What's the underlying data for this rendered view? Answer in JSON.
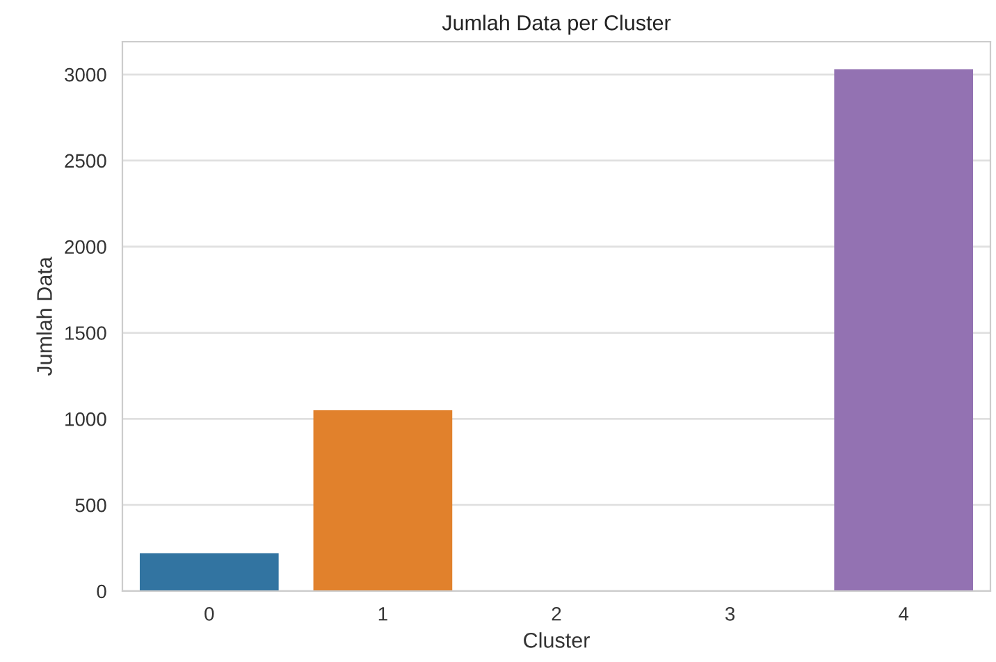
{
  "chart_data": {
    "type": "bar",
    "title": "Jumlah Data per Cluster",
    "xlabel": "Cluster",
    "ylabel": "Jumlah Data",
    "categories": [
      "0",
      "1",
      "2",
      "3",
      "4"
    ],
    "values": [
      220,
      1050,
      0,
      0,
      3030
    ],
    "colors": [
      "#3274a1",
      "#e1812c",
      "#3a923a",
      "#c03d3e",
      "#9372b2"
    ],
    "ylim": [
      0,
      3190
    ],
    "yticks": [
      0,
      500,
      1000,
      1500,
      2000,
      2500,
      3000
    ],
    "grid": "y",
    "legend": false
  }
}
